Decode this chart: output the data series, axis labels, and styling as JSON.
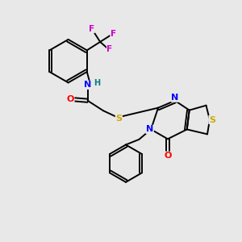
{
  "background_color": "#e8e8e8",
  "atom_colors": {
    "C": "#000000",
    "N": "#0000ff",
    "O": "#ff0000",
    "S": "#ccaa00",
    "F": "#cc00cc",
    "H": "#008080"
  },
  "figsize": [
    3.0,
    3.0
  ],
  "dpi": 100,
  "lw": 1.4
}
